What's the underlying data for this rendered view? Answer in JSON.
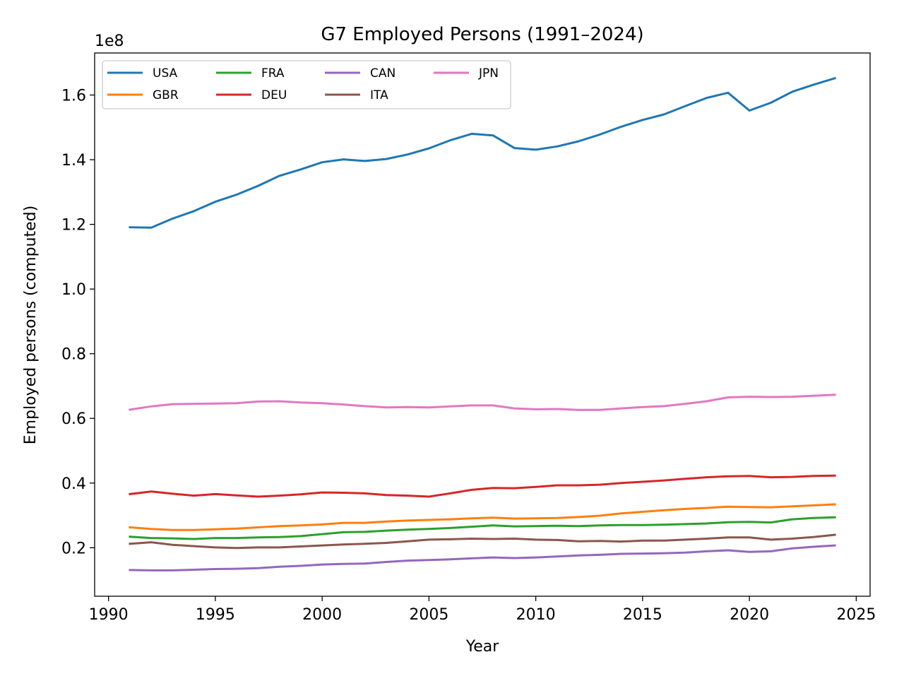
{
  "chart_data": {
    "type": "line",
    "title": "G7 Employed Persons (1991–2024)",
    "xlabel": "Year",
    "ylabel": "Employed persons (computed)",
    "y_offset_label": "1e8",
    "y_scale_factor": 100000000,
    "xlim": [
      1989.35,
      2025.65
    ],
    "ylim": [
      0.05,
      1.73
    ],
    "x_ticks": [
      1990,
      1995,
      2000,
      2005,
      2010,
      2015,
      2020,
      2025
    ],
    "y_ticks": [
      0.2,
      0.4,
      0.6,
      0.8,
      1.0,
      1.2,
      1.4,
      1.6
    ],
    "y_tick_labels": [
      "0.2",
      "0.4",
      "0.6",
      "0.8",
      "1.0",
      "1.2",
      "1.4",
      "1.6"
    ],
    "grid": false,
    "legend": {
      "placement": "upper-left",
      "columns": 4
    },
    "x": [
      1991,
      1992,
      1993,
      1994,
      1995,
      1996,
      1997,
      1998,
      1999,
      2000,
      2001,
      2002,
      2003,
      2004,
      2005,
      2006,
      2007,
      2008,
      2009,
      2010,
      2011,
      2012,
      2013,
      2014,
      2015,
      2016,
      2017,
      2018,
      2019,
      2020,
      2021,
      2022,
      2023,
      2024
    ],
    "series": [
      {
        "name": "USA",
        "color": "#1f77b4",
        "values": [
          1.191,
          1.19,
          1.218,
          1.241,
          1.27,
          1.292,
          1.319,
          1.35,
          1.37,
          1.392,
          1.401,
          1.396,
          1.402,
          1.416,
          1.435,
          1.46,
          1.48,
          1.475,
          1.436,
          1.431,
          1.441,
          1.457,
          1.478,
          1.502,
          1.523,
          1.54,
          1.566,
          1.591,
          1.607,
          1.552,
          1.576,
          1.61,
          1.632,
          1.652
        ]
      },
      {
        "name": "GBR",
        "color": "#ff7f0e",
        "values": [
          0.263,
          0.258,
          0.255,
          0.255,
          0.257,
          0.259,
          0.263,
          0.267,
          0.269,
          0.272,
          0.277,
          0.277,
          0.281,
          0.284,
          0.286,
          0.288,
          0.291,
          0.293,
          0.29,
          0.291,
          0.292,
          0.295,
          0.299,
          0.306,
          0.311,
          0.316,
          0.32,
          0.323,
          0.327,
          0.326,
          0.325,
          0.328,
          0.331,
          0.334
        ]
      },
      {
        "name": "FRA",
        "color": "#2ca02c",
        "values": [
          0.234,
          0.23,
          0.229,
          0.227,
          0.23,
          0.23,
          0.232,
          0.233,
          0.236,
          0.242,
          0.248,
          0.249,
          0.253,
          0.256,
          0.258,
          0.261,
          0.265,
          0.269,
          0.266,
          0.267,
          0.268,
          0.267,
          0.269,
          0.27,
          0.27,
          0.271,
          0.273,
          0.275,
          0.279,
          0.28,
          0.278,
          0.288,
          0.292,
          0.294
        ]
      },
      {
        "name": "DEU",
        "color": "#d62728",
        "values": [
          0.366,
          0.374,
          0.367,
          0.361,
          0.366,
          0.362,
          0.358,
          0.361,
          0.365,
          0.371,
          0.37,
          0.368,
          0.363,
          0.361,
          0.358,
          0.368,
          0.379,
          0.385,
          0.384,
          0.388,
          0.393,
          0.393,
          0.395,
          0.4,
          0.404,
          0.408,
          0.413,
          0.418,
          0.421,
          0.422,
          0.418,
          0.419,
          0.422,
          0.423
        ]
      },
      {
        "name": "CAN",
        "color": "#9467bd",
        "values": [
          0.131,
          0.13,
          0.13,
          0.132,
          0.134,
          0.135,
          0.137,
          0.141,
          0.144,
          0.148,
          0.15,
          0.151,
          0.156,
          0.16,
          0.162,
          0.164,
          0.167,
          0.17,
          0.168,
          0.17,
          0.173,
          0.176,
          0.178,
          0.181,
          0.182,
          0.183,
          0.185,
          0.189,
          0.192,
          0.187,
          0.189,
          0.198,
          0.203,
          0.207
        ]
      },
      {
        "name": "ITA",
        "color": "#8c564b",
        "values": [
          0.212,
          0.217,
          0.209,
          0.205,
          0.201,
          0.199,
          0.201,
          0.201,
          0.204,
          0.207,
          0.21,
          0.212,
          0.215,
          0.22,
          0.225,
          0.226,
          0.228,
          0.227,
          0.228,
          0.225,
          0.224,
          0.22,
          0.221,
          0.219,
          0.222,
          0.222,
          0.225,
          0.228,
          0.232,
          0.232,
          0.225,
          0.228,
          0.233,
          0.24
        ]
      },
      {
        "name": "JPN",
        "color": "#e377c2",
        "values": [
          0.627,
          0.637,
          0.644,
          0.645,
          0.646,
          0.647,
          0.652,
          0.653,
          0.649,
          0.647,
          0.643,
          0.638,
          0.634,
          0.635,
          0.634,
          0.637,
          0.64,
          0.64,
          0.631,
          0.628,
          0.629,
          0.626,
          0.626,
          0.631,
          0.635,
          0.638,
          0.645,
          0.653,
          0.665,
          0.667,
          0.666,
          0.667,
          0.67,
          0.673
        ]
      }
    ]
  }
}
